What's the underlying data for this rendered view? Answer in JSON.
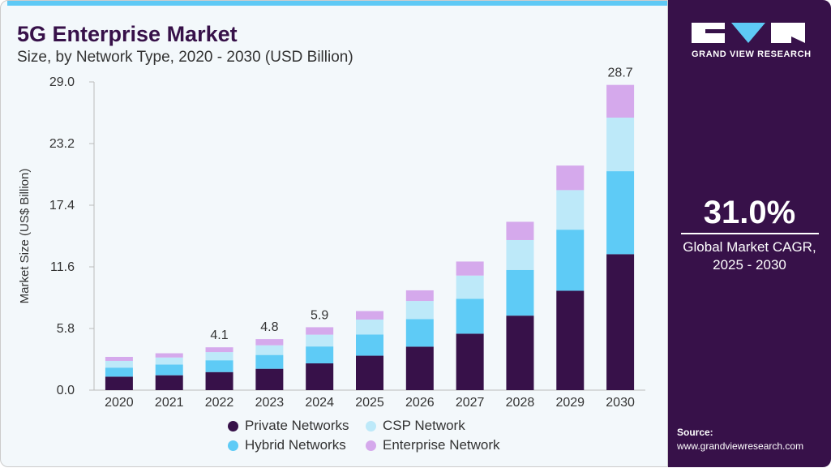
{
  "header": {
    "title": "5G Enterprise Market",
    "subtitle": "Size, by Network Type, 2020 - 2030 (USD Billion)"
  },
  "side": {
    "logo_text": "GRAND VIEW RESEARCH",
    "cagr": "31.0%",
    "cagr_label_1": "Global Market CAGR,",
    "cagr_label_2": "2025 - 2030",
    "source_label": "Source:",
    "source_url": "www.grandviewresearch.com"
  },
  "colors": {
    "private": "#371149",
    "hybrid": "#5ecbf6",
    "csp": "#bde9f9",
    "enterprise": "#d5a9ec",
    "accent": "#5ec9f5"
  },
  "chart_data": {
    "type": "bar",
    "stacked": true,
    "title": "5G Enterprise Market",
    "subtitle": "Size, by Network Type, 2020 - 2030 (USD Billion)",
    "xlabel": "",
    "ylabel": "Market Size (US$ Billion)",
    "ylim": [
      0,
      29
    ],
    "yticks": [
      "0.0",
      "5.8",
      "11.6",
      "17.4",
      "23.2",
      "29.0"
    ],
    "legend": "bottom",
    "categories": [
      "2020",
      "2021",
      "2022",
      "2023",
      "2024",
      "2025",
      "2026",
      "2027",
      "2028",
      "2029",
      "2030"
    ],
    "series": [
      {
        "name": "Private Networks",
        "key": "private",
        "values": [
          1.27,
          1.4,
          1.7,
          2.01,
          2.52,
          3.24,
          4.09,
          5.31,
          7.01,
          9.35,
          12.79
        ]
      },
      {
        "name": "Hybrid Networks",
        "key": "hybrid",
        "values": [
          0.85,
          1.01,
          1.11,
          1.3,
          1.59,
          1.99,
          2.6,
          3.29,
          4.3,
          5.75,
          7.81
        ]
      },
      {
        "name": "CSP Network",
        "key": "csp",
        "values": [
          0.63,
          0.66,
          0.77,
          0.91,
          1.11,
          1.41,
          1.7,
          2.18,
          2.81,
          3.72,
          5.04
        ]
      },
      {
        "name": "Enterprise Network",
        "key": "enterprise",
        "values": [
          0.38,
          0.4,
          0.45,
          0.58,
          0.7,
          0.8,
          1.0,
          1.32,
          1.72,
          2.31,
          3.08
        ]
      }
    ],
    "data_labels": {
      "2022": "4.1",
      "2023": "4.8",
      "2024": "5.9",
      "2030": "28.7"
    }
  }
}
